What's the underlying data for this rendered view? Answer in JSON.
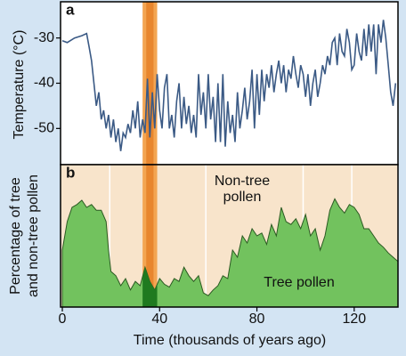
{
  "chart_data": [
    {
      "type": "line",
      "label": "a",
      "ylabel": "Temperature (°C)",
      "xlim": [
        0,
        138
      ],
      "ylim": [
        -58,
        -22
      ],
      "yticks": [
        -30,
        -40,
        -50
      ],
      "highlight": [
        33,
        39
      ],
      "vlines": [
        19.5,
        59,
        99,
        119
      ],
      "background": "#ffffff",
      "series": [
        {
          "color": "#3b5a85",
          "x": [
            0,
            2,
            5,
            8,
            10,
            11,
            12,
            13,
            14,
            15,
            16,
            17,
            18,
            19,
            20,
            21,
            22,
            23,
            24,
            25,
            26,
            27,
            28,
            29,
            30,
            31,
            32,
            33,
            34,
            35,
            36,
            37,
            38,
            39,
            40,
            41,
            42,
            43,
            44,
            45,
            46,
            47,
            48,
            49,
            50,
            51,
            52,
            53,
            54,
            55,
            56,
            57,
            58,
            59,
            60,
            61,
            62,
            63,
            64,
            65,
            66,
            67,
            68,
            69,
            70,
            71,
            72,
            73,
            74,
            75,
            76,
            77,
            78,
            79,
            80,
            81,
            82,
            83,
            84,
            85,
            86,
            87,
            88,
            89,
            90,
            91,
            92,
            93,
            94,
            95,
            96,
            97,
            98,
            99,
            100,
            101,
            102,
            103,
            104,
            105,
            106,
            107,
            108,
            109,
            110,
            111,
            112,
            113,
            114,
            115,
            116,
            117,
            118,
            119,
            120,
            121,
            122,
            123,
            124,
            125,
            126,
            127,
            128,
            129,
            130,
            131,
            132,
            133,
            134,
            135,
            136,
            137
          ],
          "values": [
            -30.6,
            -31,
            -30,
            -29.5,
            -29,
            -32,
            -35,
            -40,
            -45,
            -42,
            -48,
            -46,
            -50,
            -47,
            -52,
            -48,
            -53,
            -50,
            -55,
            -51,
            -52,
            -49,
            -51,
            -46,
            -50,
            -44,
            -52,
            -48,
            -51,
            -39,
            -52,
            -42,
            -50,
            -38,
            -46,
            -50,
            -41,
            -38,
            -50,
            -47,
            -52,
            -44,
            -40,
            -50,
            -43,
            -49,
            -45,
            -51,
            -47,
            -52,
            -38,
            -47,
            -42,
            -50,
            -38,
            -48,
            -43,
            -53,
            -40,
            -53,
            -38,
            -54,
            -44,
            -51,
            -47,
            -53,
            -42,
            -50,
            -46,
            -41,
            -48,
            -44,
            -37,
            -50,
            -38,
            -47,
            -37,
            -44,
            -38,
            -41,
            -36,
            -42,
            -38,
            -35,
            -40,
            -36,
            -42,
            -37,
            -39,
            -34,
            -38,
            -41,
            -36,
            -38,
            -43,
            -38,
            -45,
            -40,
            -37,
            -43,
            -40,
            -36,
            -38,
            -34,
            -36,
            -31,
            -30,
            -36,
            -29,
            -33,
            -34,
            -28,
            -31,
            -37,
            -36,
            -29,
            -33,
            -35,
            -28,
            -34,
            -27,
            -33,
            -27,
            -38,
            -27,
            -31,
            -26,
            -30,
            -36,
            -42,
            -45,
            -40
          ]
        }
      ]
    },
    {
      "type": "area",
      "label": "b",
      "ylabel": [
        "Percentage of tree",
        "and non-tree pollen"
      ],
      "annotations": [
        [
          "Non-tree",
          "pollen"
        ],
        "Tree pollen"
      ],
      "xlabel": "Time (thousands of years ago)",
      "xlim": [
        0,
        138
      ],
      "ylim": [
        0,
        100
      ],
      "xticks": [
        0,
        40,
        80,
        120
      ],
      "highlight": [
        33,
        39
      ],
      "vlines": [
        19.5,
        59,
        99,
        119
      ],
      "background": "#f8e4cb",
      "series": [
        {
          "color": "#72c25e",
          "x": [
            0,
            2,
            4,
            6,
            8,
            10,
            12,
            14,
            16,
            18,
            19,
            20,
            22,
            24,
            26,
            28,
            30,
            32,
            34,
            36,
            38,
            40,
            42,
            44,
            46,
            48,
            50,
            52,
            54,
            56,
            58,
            60,
            62,
            64,
            66,
            68,
            70,
            72,
            74,
            76,
            78,
            80,
            82,
            84,
            86,
            88,
            90,
            92,
            94,
            96,
            98,
            100,
            102,
            104,
            106,
            108,
            110,
            112,
            114,
            116,
            118,
            120,
            122,
            124,
            126,
            128,
            130,
            132,
            134,
            136,
            138
          ],
          "values": [
            40,
            60,
            70,
            72,
            75,
            70,
            72,
            68,
            68,
            60,
            40,
            25,
            22,
            15,
            20,
            12,
            18,
            15,
            28,
            18,
            12,
            20,
            16,
            14,
            20,
            18,
            28,
            22,
            18,
            22,
            10,
            8,
            12,
            15,
            22,
            20,
            40,
            35,
            50,
            45,
            55,
            50,
            52,
            44,
            58,
            50,
            70,
            60,
            58,
            62,
            55,
            65,
            50,
            55,
            40,
            50,
            68,
            76,
            70,
            66,
            72,
            70,
            65,
            55,
            55,
            50,
            45,
            42,
            38,
            35,
            32
          ]
        }
      ]
    }
  ]
}
